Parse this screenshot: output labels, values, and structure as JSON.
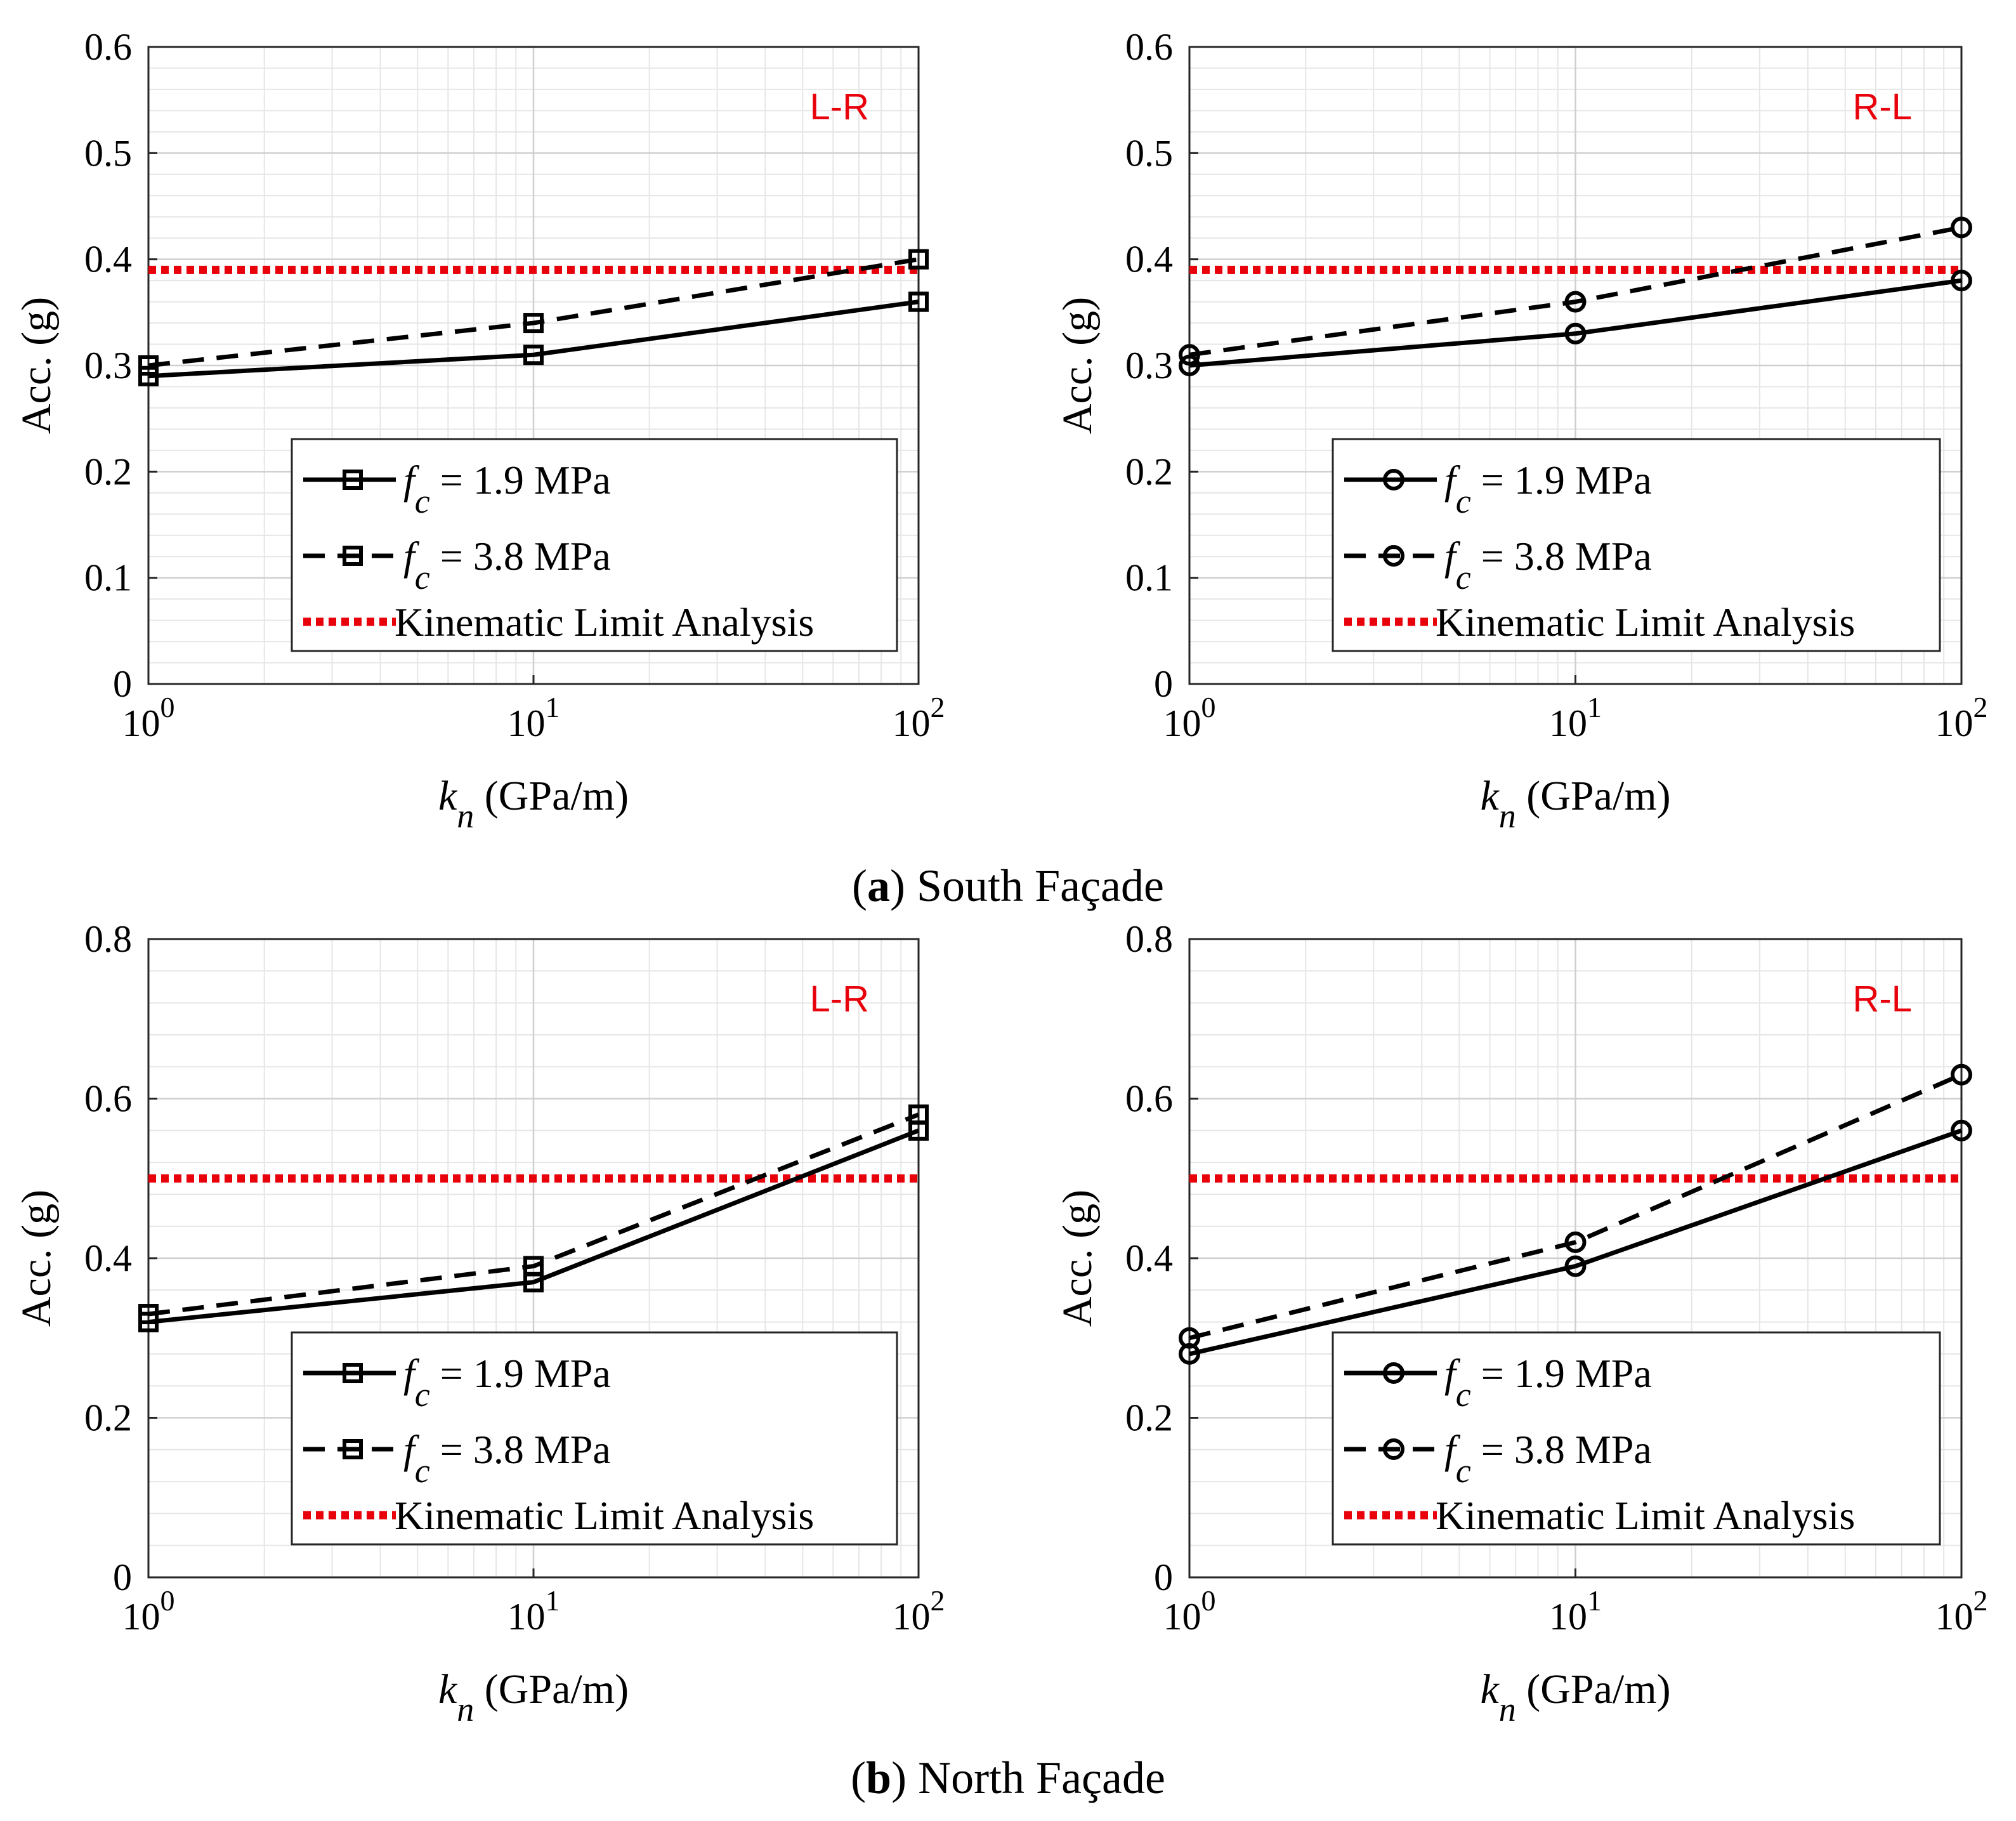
{
  "captions": [
    {
      "letter": "a",
      "text": "South Façade"
    },
    {
      "letter": "b",
      "text": "North Façade"
    }
  ],
  "colors": {
    "series": "#000000",
    "limit": "#e8000b",
    "direction_label": "#e8000b",
    "grid_minor": "#e6e6e6",
    "grid_major": "#cfcfcf"
  },
  "chart_data": [
    {
      "type": "line",
      "panel": "a-left",
      "direction_label": "L-R",
      "marker": "square",
      "x": [
        1,
        10,
        100
      ],
      "xscale": "log",
      "xlim": [
        1,
        100
      ],
      "x_tick_labels": [
        "10",
        "0",
        "10",
        "1",
        "10",
        "2"
      ],
      "xlabel_var": "k",
      "xlabel_sub": "n",
      "xlabel_unit": "(GPa/m)",
      "ylabel": "Acc. (g)",
      "ylim": [
        0,
        0.6
      ],
      "y_ticks": [
        "0",
        "0.1",
        "0.2",
        "0.3",
        "0.4",
        "0.5",
        "0.6"
      ],
      "grid": true,
      "legend_position": "bottom-right",
      "series": [
        {
          "name_var": "f",
          "name_sub": "c",
          "name_rest": "= 1.9 MPa",
          "style": "solid",
          "values": [
            0.29,
            0.31,
            0.36
          ]
        },
        {
          "name_var": "f",
          "name_sub": "c",
          "name_rest": "= 3.8 MPa",
          "style": "dashed",
          "values": [
            0.3,
            0.34,
            0.4
          ]
        }
      ],
      "limit": {
        "name": "Kinematic Limit Analysis",
        "value": 0.39
      }
    },
    {
      "type": "line",
      "panel": "a-right",
      "direction_label": "R-L",
      "marker": "circle",
      "x": [
        1,
        10,
        100
      ],
      "xscale": "log",
      "xlim": [
        1,
        100
      ],
      "xlabel_var": "k",
      "xlabel_sub": "n",
      "xlabel_unit": "(GPa/m)",
      "ylabel": "Acc. (g)",
      "ylim": [
        0,
        0.6
      ],
      "y_ticks": [
        "0",
        "0.1",
        "0.2",
        "0.3",
        "0.4",
        "0.5",
        "0.6"
      ],
      "grid": true,
      "legend_position": "bottom-right",
      "series": [
        {
          "name_var": "f",
          "name_sub": "c",
          "name_rest": "= 1.9 MPa",
          "style": "solid",
          "values": [
            0.3,
            0.33,
            0.38
          ]
        },
        {
          "name_var": "f",
          "name_sub": "c",
          "name_rest": "= 3.8 MPa",
          "style": "dashed",
          "values": [
            0.31,
            0.36,
            0.43
          ]
        }
      ],
      "limit": {
        "name": "Kinematic Limit Analysis",
        "value": 0.39
      }
    },
    {
      "type": "line",
      "panel": "b-left",
      "direction_label": "L-R",
      "marker": "square",
      "x": [
        1,
        10,
        100
      ],
      "xscale": "log",
      "xlim": [
        1,
        100
      ],
      "xlabel_var": "k",
      "xlabel_sub": "n",
      "xlabel_unit": "(GPa/m)",
      "ylabel": "Acc. (g)",
      "ylim": [
        0,
        0.8
      ],
      "y_ticks": [
        "0",
        "0.2",
        "0.4",
        "0.6",
        "0.8"
      ],
      "grid": true,
      "legend_position": "bottom-right",
      "series": [
        {
          "name_var": "f",
          "name_sub": "c",
          "name_rest": "= 1.9 MPa",
          "style": "solid",
          "values": [
            0.32,
            0.37,
            0.56
          ]
        },
        {
          "name_var": "f",
          "name_sub": "c",
          "name_rest": "= 3.8 MPa",
          "style": "dashed",
          "values": [
            0.33,
            0.39,
            0.58
          ]
        }
      ],
      "limit": {
        "name": "Kinematic Limit Analysis",
        "value": 0.5
      }
    },
    {
      "type": "line",
      "panel": "b-right",
      "direction_label": "R-L",
      "marker": "circle",
      "x": [
        1,
        10,
        100
      ],
      "xscale": "log",
      "xlim": [
        1,
        100
      ],
      "xlabel_var": "k",
      "xlabel_sub": "n",
      "xlabel_unit": "(GPa/m)",
      "ylabel": "Acc. (g)",
      "ylim": [
        0,
        0.8
      ],
      "y_ticks": [
        "0",
        "0.2",
        "0.4",
        "0.6",
        "0.8"
      ],
      "grid": true,
      "legend_position": "bottom-right",
      "series": [
        {
          "name_var": "f",
          "name_sub": "c",
          "name_rest": "= 1.9 MPa",
          "style": "solid",
          "values": [
            0.28,
            0.39,
            0.56
          ]
        },
        {
          "name_var": "f",
          "name_sub": "c",
          "name_rest": "= 3.8 MPa",
          "style": "dashed",
          "values": [
            0.3,
            0.42,
            0.63
          ]
        }
      ],
      "limit": {
        "name": "Kinematic Limit Analysis",
        "value": 0.5
      }
    }
  ]
}
